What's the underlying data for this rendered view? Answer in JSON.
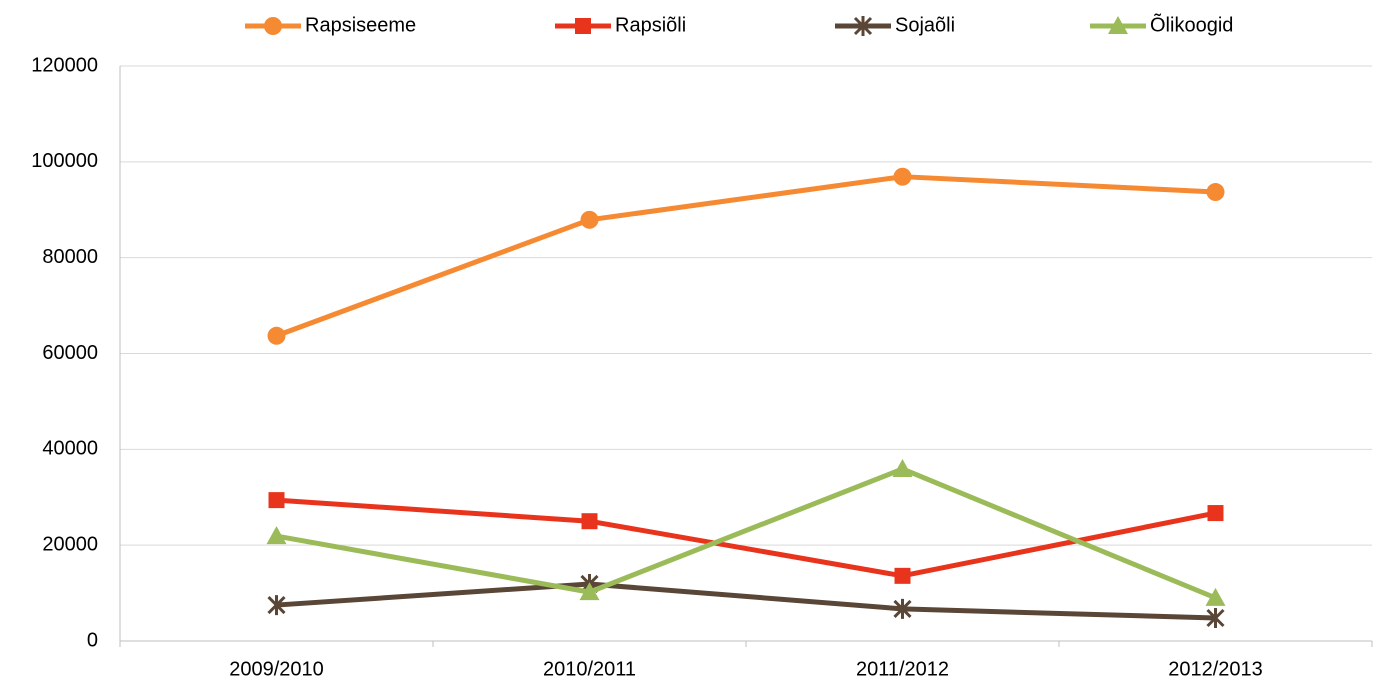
{
  "chart_data": {
    "type": "line",
    "categories": [
      "2009/2010",
      "2010/2011",
      "2011/2012",
      "2012/2013"
    ],
    "series": [
      {
        "name": "Rapsiseeme",
        "color": "#f58a33",
        "marker": "circle",
        "values": [
          63700,
          87900,
          96900,
          93700
        ]
      },
      {
        "name": "Rapsiõli",
        "color": "#e8341c",
        "marker": "square",
        "values": [
          29400,
          25000,
          13600,
          26700
        ]
      },
      {
        "name": "Sojaõli",
        "color": "#5a4636",
        "marker": "star",
        "values": [
          7500,
          11900,
          6700,
          4800
        ]
      },
      {
        "name": "Õlikoogid",
        "color": "#9bbb59",
        "marker": "triangle",
        "values": [
          21900,
          10200,
          35900,
          9000
        ]
      }
    ],
    "ylim": [
      0,
      120000
    ],
    "yticks": [
      0,
      20000,
      40000,
      60000,
      80000,
      100000,
      120000
    ],
    "grid": true,
    "legend": "top"
  }
}
